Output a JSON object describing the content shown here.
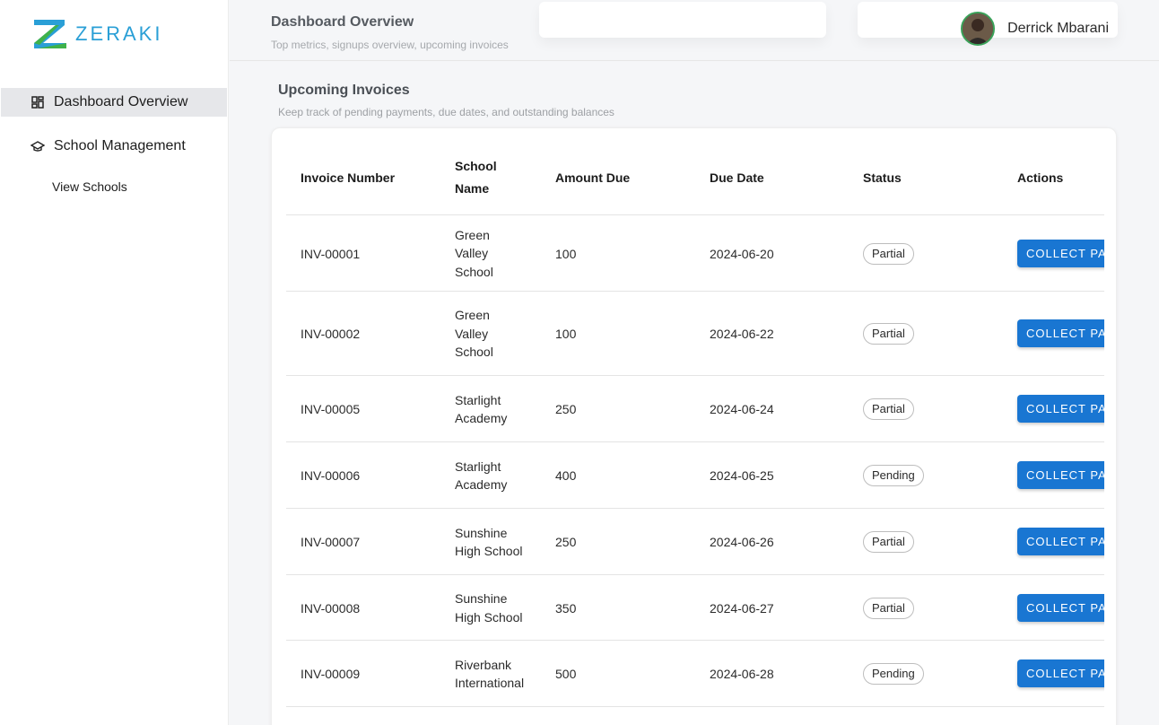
{
  "brand": {
    "name": "ZERAKI"
  },
  "sidebar": {
    "items": [
      {
        "label": "Dashboard Overview",
        "icon": "dashboard-icon",
        "active": true
      },
      {
        "label": "School Management",
        "icon": "graduation-cap-icon",
        "active": false
      }
    ],
    "sub_items": [
      {
        "label": "View Schools"
      }
    ]
  },
  "header": {
    "title": "Dashboard Overview",
    "subtitle": "Top metrics, signups overview, upcoming invoices",
    "user_name": "Derrick Mbarani"
  },
  "invoices": {
    "title": "Upcoming Invoices",
    "subtitle": "Keep track of pending payments, due dates, and outstanding balances",
    "columns": {
      "invoice_number": "Invoice Number",
      "school_name_1": "School",
      "school_name_2": "Name",
      "amount_due": "Amount Due",
      "due_date": "Due Date",
      "status": "Status",
      "actions": "Actions"
    },
    "action_label": "COLLECT PAYMENT",
    "rows": [
      {
        "invoice": "INV-00001",
        "school_lines": [
          "Green",
          "Valley",
          "School"
        ],
        "amount": "100",
        "due": "2024-06-20",
        "status": "Partial"
      },
      {
        "invoice": "INV-00002",
        "school_lines": [
          "Green",
          "Valley",
          "School"
        ],
        "amount": "100",
        "due": "2024-06-22",
        "status": "Partial"
      },
      {
        "invoice": "INV-00005",
        "school_lines": [
          "Starlight",
          "Academy"
        ],
        "amount": "250",
        "due": "2024-06-24",
        "status": "Partial"
      },
      {
        "invoice": "INV-00006",
        "school_lines": [
          "Starlight",
          "Academy"
        ],
        "amount": "400",
        "due": "2024-06-25",
        "status": "Pending"
      },
      {
        "invoice": "INV-00007",
        "school_lines": [
          "Sunshine",
          "High School"
        ],
        "amount": "250",
        "due": "2024-06-26",
        "status": "Partial"
      },
      {
        "invoice": "INV-00008",
        "school_lines": [
          "Sunshine",
          "High School"
        ],
        "amount": "350",
        "due": "2024-06-27",
        "status": "Partial"
      },
      {
        "invoice": "INV-00009",
        "school_lines": [
          "Riverbank",
          "International"
        ],
        "amount": "500",
        "due": "2024-06-28",
        "status": "Pending"
      }
    ]
  },
  "colors": {
    "accent": "#1976d2",
    "brand": "#2a9fd6",
    "active_nav": "#e6e7ea"
  }
}
